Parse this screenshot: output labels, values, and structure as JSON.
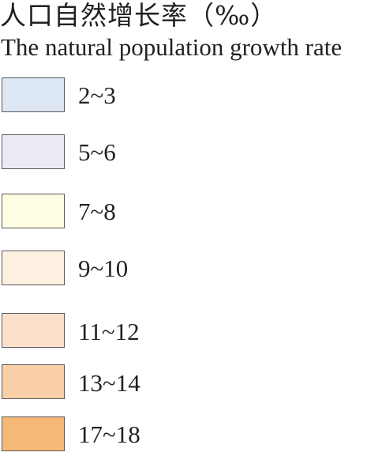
{
  "legend": {
    "title_zh": "人口自然增长率（‰）",
    "title_en": "The natural population growth rate",
    "items": [
      {
        "label": "2~3",
        "color": "#dde7f4"
      },
      {
        "label": "5~6",
        "color": "#ebebf6"
      },
      {
        "label": "7~8",
        "color": "#fffde2"
      },
      {
        "label": "9~10",
        "color": "#fdf0e0"
      },
      {
        "label": "11~12",
        "color": "#fbe0cb"
      },
      {
        "label": "13~14",
        "color": "#f8cfa6"
      },
      {
        "label": "17~18",
        "color": "#f5b877"
      }
    ]
  }
}
